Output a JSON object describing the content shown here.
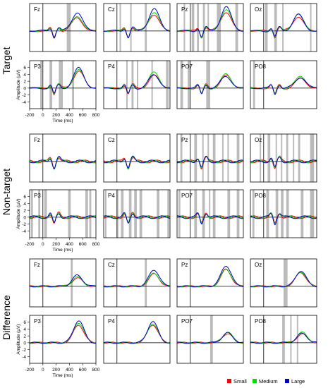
{
  "chart_data": {
    "type": "line",
    "x_unit": "Time (ms)",
    "y_unit": "Amplitude (µV)",
    "xlim": [
      -200,
      800
    ],
    "ylim": [
      -6,
      8
    ],
    "xticks": [
      -200,
      0,
      200,
      400,
      600,
      800
    ],
    "yticks": [
      -4,
      -2,
      0,
      2,
      4,
      6
    ],
    "legend": [
      "Small",
      "Medium",
      "Large"
    ],
    "colors": {
      "Small": "#ff0000",
      "Medium": "#00dd00",
      "Large": "#0000cc",
      "significance": "#bbbbbb"
    },
    "legend_placement": "bottom-right",
    "sections": [
      {
        "title": "Target",
        "panels": [
          {
            "channel": "Fz",
            "significant": [
              [
                360,
                420
              ]
            ],
            "peak": [
              520,
              5.5
            ],
            "peak_scale": [
              0.7,
              0.8,
              1.0
            ]
          },
          {
            "channel": "Cz",
            "significant": [
              [
                40,
                60
              ],
              [
                200,
                220
              ],
              [
                420,
                450
              ]
            ],
            "peak": [
              560,
              6.5
            ],
            "peak_scale": [
              0.75,
              0.85,
              1.0
            ]
          },
          {
            "channel": "Pz",
            "significant": [
              [
                -100,
                -80
              ],
              [
                20,
                60
              ],
              [
                100,
                130
              ],
              [
                190,
                220
              ],
              [
                260,
                280
              ],
              [
                400,
                460
              ],
              [
                680,
                720
              ]
            ],
            "peak": [
              540,
              7.0
            ],
            "peak_scale": [
              0.8,
              0.9,
              1.0
            ]
          },
          {
            "channel": "Oz",
            "significant": [
              [
                20,
                60
              ],
              [
                160,
                200
              ],
              [
                280,
                300
              ],
              [
                700,
                720
              ]
            ],
            "peak": [
              520,
              5.0
            ],
            "peak_scale": [
              0.85,
              1.0,
              0.95
            ]
          },
          {
            "channel": "P3",
            "significant": [
              [
                -40,
                -10
              ],
              [
                100,
                140
              ],
              [
                240,
                300
              ],
              [
                440,
                470
              ]
            ],
            "peak": [
              540,
              5.8
            ],
            "peak_scale": [
              0.85,
              0.9,
              1.0
            ]
          },
          {
            "channel": "P4",
            "significant": [
              [
                140,
                160
              ],
              [
                220,
                250
              ],
              [
                300,
                320
              ],
              [
                520,
                540
              ],
              [
                740,
                780
              ]
            ],
            "peak": [
              560,
              4.5
            ],
            "peak_scale": [
              0.8,
              1.0,
              0.85
            ]
          },
          {
            "channel": "PO7",
            "significant": [
              [
                -150,
                -110
              ],
              [
                -40,
                -10
              ],
              [
                240,
                300
              ]
            ],
            "peak": [
              540,
              4.0
            ],
            "peak_scale": [
              0.9,
              1.0,
              0.85
            ]
          },
          {
            "channel": "PO8",
            "significant": [
              [
                -160,
                -130
              ]
            ],
            "peak": [
              560,
              3.5
            ],
            "peak_scale": [
              0.8,
              1.0,
              0.9
            ]
          }
        ]
      },
      {
        "title": "Non-target",
        "panels": [
          {
            "channel": "Fz",
            "significant": [],
            "peak": [
              450,
              0.6
            ],
            "peak_scale": [
              1.0,
              0.8,
              0.8
            ]
          },
          {
            "channel": "Cz",
            "significant": [],
            "peak": [
              450,
              0.5
            ],
            "peak_scale": [
              1.0,
              0.8,
              0.8
            ]
          },
          {
            "channel": "Pz",
            "significant": [
              [
                -150,
                -120
              ],
              [
                60,
                100
              ],
              [
                180,
                200
              ],
              [
                260,
                280
              ],
              [
                340,
                380
              ],
              [
                480,
                500
              ],
              [
                560,
                580
              ],
              [
                700,
                740
              ]
            ],
            "peak": [
              450,
              0.5
            ],
            "peak_scale": [
              1.0,
              0.8,
              0.8
            ]
          },
          {
            "channel": "Oz",
            "significant": [
              [
                -60,
                -40
              ],
              [
                60,
                100
              ],
              [
                180,
                200
              ],
              [
                260,
                280
              ],
              [
                340,
                370
              ],
              [
                440,
                460
              ],
              [
                520,
                550
              ],
              [
                700,
                760
              ]
            ],
            "peak": [
              450,
              0.4
            ],
            "peak_scale": [
              1.0,
              0.8,
              0.8
            ]
          },
          {
            "channel": "P3",
            "significant": [
              [
                -180,
                -150
              ],
              [
                -70,
                -40
              ],
              [
                20,
                60
              ],
              [
                380,
                420
              ],
              [
                640,
                680
              ],
              [
                700,
                730
              ]
            ],
            "peak": [
              450,
              0.5
            ],
            "peak_scale": [
              1.0,
              0.8,
              0.8
            ]
          },
          {
            "channel": "P4",
            "significant": [
              [
                -180,
                -160
              ],
              [
                0,
                20
              ],
              [
                60,
                100
              ],
              [
                180,
                220
              ],
              [
                260,
                300
              ],
              [
                340,
                380
              ],
              [
                600,
                640
              ],
              [
                760,
                790
              ]
            ],
            "peak": [
              450,
              0.5
            ],
            "peak_scale": [
              1.0,
              0.8,
              0.8
            ]
          },
          {
            "channel": "PO7",
            "significant": [
              [
                -180,
                -150
              ],
              [
                60,
                100
              ],
              [
                180,
                220
              ],
              [
                280,
                300
              ],
              [
                340,
                380
              ],
              [
                560,
                600
              ],
              [
                700,
                740
              ]
            ],
            "peak": [
              450,
              0.4
            ],
            "peak_scale": [
              1.0,
              0.8,
              0.8
            ]
          },
          {
            "channel": "PO8",
            "significant": [
              [
                -170,
                -140
              ],
              [
                40,
                80
              ],
              [
                180,
                220
              ],
              [
                260,
                300
              ],
              [
                340,
                380
              ],
              [
                560,
                600
              ],
              [
                700,
                760
              ]
            ],
            "peak": [
              450,
              0.4
            ],
            "peak_scale": [
              1.0,
              0.8,
              0.8
            ]
          }
        ]
      },
      {
        "title": "Difference",
        "panels": [
          {
            "channel": "Fz",
            "significant": [
              [
                420,
                450
              ]
            ],
            "peak": [
              520,
              3.2
            ],
            "peak_scale": [
              0.75,
              0.85,
              1.0
            ]
          },
          {
            "channel": "Cz",
            "significant": [
              [
                420,
                450
              ]
            ],
            "peak": [
              560,
              4.8
            ],
            "peak_scale": [
              0.75,
              0.8,
              1.0
            ]
          },
          {
            "channel": "Pz",
            "significant": [],
            "peak": [
              540,
              6.0
            ],
            "peak_scale": [
              0.8,
              0.85,
              1.0
            ]
          },
          {
            "channel": "Oz",
            "significant": [
              [
                300,
                360
              ]
            ],
            "peak": [
              560,
              4.5
            ],
            "peak_scale": [
              0.9,
              0.95,
              1.0
            ]
          },
          {
            "channel": "P3",
            "significant": [],
            "peak": [
              540,
              6.5
            ],
            "peak_scale": [
              0.8,
              0.9,
              1.0
            ]
          },
          {
            "channel": "P4",
            "significant": [],
            "peak": [
              540,
              6.2
            ],
            "peak_scale": [
              0.85,
              0.9,
              1.0
            ]
          },
          {
            "channel": "PO7",
            "significant": [
              [
                300,
                340
              ]
            ],
            "peak": [
              560,
              3.0
            ],
            "peak_scale": [
              0.9,
              1.0,
              0.95
            ]
          },
          {
            "channel": "PO8",
            "significant": [
              [
                280,
                320
              ],
              [
                400,
                420
              ],
              [
                500,
                520
              ]
            ],
            "peak": [
              580,
              3.0
            ],
            "peak_scale": [
              0.85,
              1.0,
              0.9
            ]
          }
        ]
      }
    ]
  }
}
